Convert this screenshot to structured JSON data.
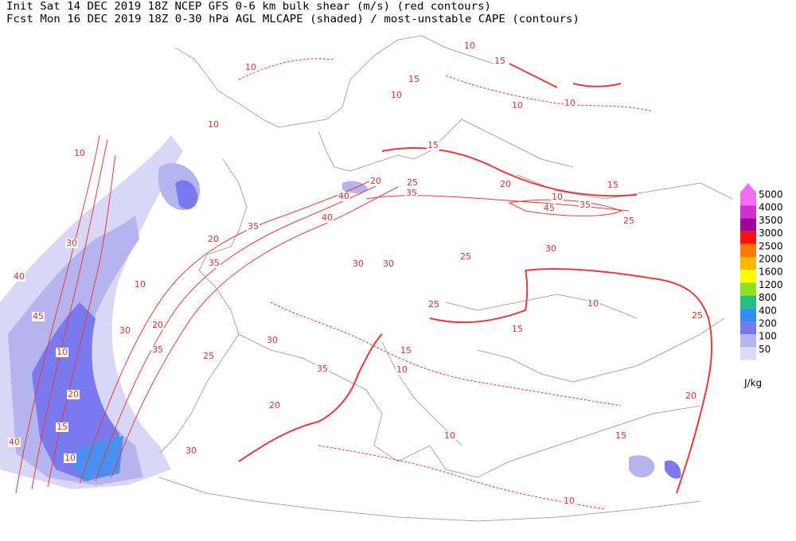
{
  "header": {
    "line1": "Init  Sat 14 DEC 2019 18Z  NCEP GFS 0-6 km bulk shear (m/s) (red contours)",
    "line2": "Fcst Mon 16 DEC 2019 18Z  0-30 hPa AGL MLCAPE (shaded) / most-unstable CAPE (contours)"
  },
  "legend": {
    "unit": "J/kg",
    "levels": [
      {
        "value": 5000,
        "color": "#f070f0"
      },
      {
        "value": 4000,
        "color": "#d030d0"
      },
      {
        "value": 3500,
        "color": "#a000a0"
      },
      {
        "value": 3000,
        "color": "#ff1010"
      },
      {
        "value": 2500,
        "color": "#ff7a00"
      },
      {
        "value": 2000,
        "color": "#ffb800"
      },
      {
        "value": 1600,
        "color": "#ffff00"
      },
      {
        "value": 1200,
        "color": "#8ee020"
      },
      {
        "value": 800,
        "color": "#20c080"
      },
      {
        "value": 400,
        "color": "#3090f0"
      },
      {
        "value": 200,
        "color": "#7878ee"
      },
      {
        "value": 100,
        "color": "#b4b4f0"
      },
      {
        "value": 50,
        "color": "#dcdcf8"
      }
    ]
  },
  "contour_labels": [
    "10",
    "10",
    "15",
    "15",
    "10",
    "10",
    "10",
    "10",
    "10",
    "15",
    "20",
    "25",
    "35",
    "40",
    "40",
    "35",
    "45",
    "35",
    "10",
    "20",
    "15",
    "25",
    "30",
    "25",
    "20",
    "30",
    "40",
    "45",
    "35",
    "10",
    "30",
    "20",
    "10",
    "25",
    "35",
    "30",
    "30",
    "30",
    "25",
    "15",
    "15",
    "20",
    "15",
    "40",
    "10",
    "20",
    "10",
    "10",
    "20",
    "15",
    "10",
    "25",
    "30",
    "10",
    "35"
  ]
}
